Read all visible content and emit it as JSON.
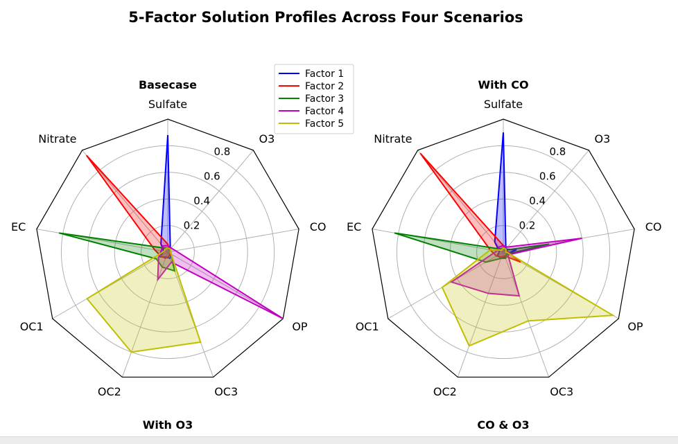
{
  "figure": {
    "title": "5-Factor Solution Profiles Across Four Scenarios"
  },
  "chart_data": [
    {
      "type": "radar",
      "title": "Basecase",
      "axes": [
        "Sulfate",
        "O3",
        "CO",
        "OP",
        "OC3",
        "OC2",
        "OC1",
        "EC",
        "Nitrate"
      ],
      "radial_ticks": [
        "0.2",
        "0.4",
        "0.6",
        "0.8"
      ],
      "rlim": [
        0,
        1
      ],
      "grid": true,
      "series": [
        {
          "name": "Factor 1",
          "color": "#0000ff",
          "values": [
            0.88,
            0.03,
            0.02,
            0.03,
            0.05,
            0.04,
            0.07,
            0.03,
            0.08
          ]
        },
        {
          "name": "Factor 2",
          "color": "#ff0000",
          "values": [
            0.06,
            0.02,
            0.02,
            0.02,
            0.03,
            0.05,
            0.06,
            0.1,
            0.95
          ]
        },
        {
          "name": "Factor 3",
          "color": "#008000",
          "values": [
            0.03,
            0.02,
            0.02,
            0.03,
            0.15,
            0.12,
            0.1,
            0.83,
            0.04
          ]
        },
        {
          "name": "Factor 4",
          "color": "#bf00bf",
          "values": [
            0.05,
            0.04,
            0.06,
            1.0,
            0.08,
            0.22,
            0.08,
            0.05,
            0.06
          ]
        },
        {
          "name": "Factor 5",
          "color": "#bfbf00",
          "values": [
            0.03,
            0.03,
            0.02,
            0.03,
            0.72,
            0.8,
            0.7,
            0.03,
            0.03
          ]
        }
      ]
    },
    {
      "type": "radar",
      "title": "With CO",
      "axes": [
        "Sulfate",
        "O3",
        "CO",
        "OP",
        "OC3",
        "OC2",
        "OC1",
        "EC",
        "Nitrate"
      ],
      "radial_ticks": [
        "0.2",
        "0.4",
        "0.6",
        "0.8"
      ],
      "rlim": [
        0,
        1
      ],
      "grid": true,
      "series": [
        {
          "name": "Factor 1",
          "color": "#0000ff",
          "values": [
            0.9,
            0.03,
            0.1,
            0.03,
            0.04,
            0.05,
            0.05,
            0.03,
            0.1
          ]
        },
        {
          "name": "Factor 2",
          "color": "#ff0000",
          "values": [
            0.05,
            0.02,
            0.03,
            0.15,
            0.03,
            0.04,
            0.06,
            0.1,
            0.97
          ]
        },
        {
          "name": "Factor 3",
          "color": "#008000",
          "values": [
            0.03,
            0.02,
            0.35,
            0.03,
            0.05,
            0.05,
            0.15,
            0.83,
            0.03
          ]
        },
        {
          "name": "Factor 4",
          "color": "#bf00bf",
          "values": [
            0.05,
            0.05,
            0.6,
            0.04,
            0.35,
            0.33,
            0.45,
            0.05,
            0.05
          ]
        },
        {
          "name": "Factor 5",
          "color": "#bfbf00",
          "values": [
            0.03,
            0.03,
            0.02,
            0.95,
            0.55,
            0.75,
            0.53,
            0.1,
            0.02
          ]
        }
      ]
    },
    {
      "type": "radar",
      "title": "With O3"
    },
    {
      "type": "radar",
      "title": "CO & O3"
    }
  ],
  "legend": {
    "entries": [
      "Factor 1",
      "Factor 2",
      "Factor 3",
      "Factor 4",
      "Factor 5"
    ],
    "colors": [
      "#0000ff",
      "#ff0000",
      "#008000",
      "#bf00bf",
      "#bfbf00"
    ],
    "placement": "between top panels"
  }
}
